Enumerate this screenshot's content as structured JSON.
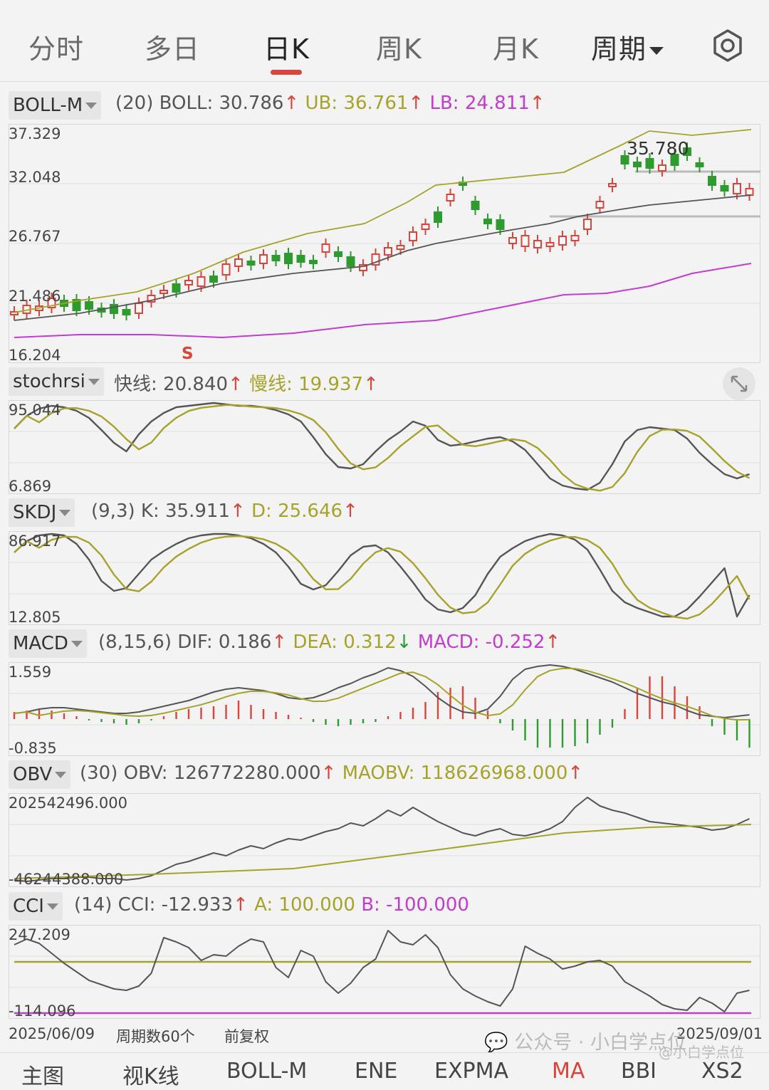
{
  "tabs": [
    {
      "label": "分时"
    },
    {
      "label": "多日"
    },
    {
      "label": "日K"
    },
    {
      "label": "周K"
    },
    {
      "label": "月K"
    },
    {
      "label": "周期"
    }
  ],
  "boll": {
    "name": "BOLL-M",
    "params": "(20)",
    "boll": "BOLL: 30.786",
    "ub": "UB: 36.761",
    "lb": "LB: 24.811",
    "y_labels": [
      "37.329",
      "32.048",
      "26.767",
      "21.486",
      "16.204"
    ],
    "peak_label": "35.780",
    "signal": "S"
  },
  "stochrsi": {
    "name": "stochrsi",
    "fast": "快线: 20.840",
    "slow": "慢线: 19.937",
    "y_labels": [
      "95.044",
      "6.869"
    ]
  },
  "skdj": {
    "name": "SKDJ",
    "params": "(9,3)",
    "k": "K: 35.911",
    "d": "D: 25.646",
    "y_labels": [
      "86.917",
      "12.805"
    ]
  },
  "macd": {
    "name": "MACD",
    "params": "(8,15,6)",
    "dif": "DIF: 0.186",
    "dea": "DEA: 0.312",
    "macd": "MACD: -0.252",
    "y_labels": [
      "1.559",
      "-0.835"
    ]
  },
  "obv": {
    "name": "OBV",
    "params": "(30)",
    "obv": "OBV: 126772280.000",
    "maobv": "MAOBV: 118626968.000",
    "y_labels": [
      "202542496.000",
      "-46244388.000"
    ]
  },
  "cci": {
    "name": "CCI",
    "params": "(14)",
    "cci": "CCI: -12.933",
    "a": "A: 100.000",
    "b": "B: -100.000",
    "y_labels": [
      "247.209",
      "-114.096"
    ]
  },
  "footer": {
    "start_date": "2025/06/09",
    "periods": "周期数60个",
    "adjust": "前复权",
    "end_date": "2025/09/01",
    "watermark": "公众号 · 小白学点位",
    "watermark2": "@小白学点位"
  },
  "bottom_nav": [
    {
      "label": "主图"
    },
    {
      "label": "视K线"
    },
    {
      "label": "BOLL-M"
    },
    {
      "label": "ENE"
    },
    {
      "label": "EXPMA"
    },
    {
      "label": "MA"
    },
    {
      "label": "BBI"
    },
    {
      "label": "XS2"
    }
  ],
  "colors": {
    "up": "#d9453b",
    "down": "#2d9b2d",
    "olive": "#a6a22a",
    "magenta": "#c33ccf",
    "dark": "#555555"
  }
}
